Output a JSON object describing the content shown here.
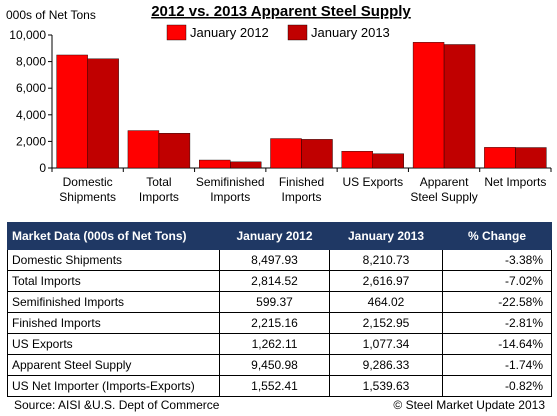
{
  "chart_data": {
    "type": "bar",
    "title": "2012 vs. 2013 Apparent Steel Supply",
    "ylabel": "000s of Net Tons",
    "ylim": [
      0,
      10000
    ],
    "yticks": [
      0,
      2000,
      4000,
      6000,
      8000,
      10000
    ],
    "ytick_labels": [
      "0",
      "2,000",
      "4,000",
      "6,000",
      "8,000",
      "10,000"
    ],
    "categories": [
      [
        "Domestic",
        "Shipments"
      ],
      [
        "Total",
        "Imports"
      ],
      [
        "Semifinished",
        "Imports"
      ],
      [
        "Finished",
        "Imports"
      ],
      [
        "US Exports"
      ],
      [
        "Apparent",
        "Steel Supply"
      ],
      [
        "Net Imports"
      ]
    ],
    "series": [
      {
        "name": "January 2012",
        "color": "#ff0000",
        "values": [
          8497.93,
          2814.52,
          599.37,
          2215.16,
          1262.11,
          9450.98,
          1552.41
        ]
      },
      {
        "name": "January 2013",
        "color": "#c00000",
        "values": [
          8210.73,
          2616.97,
          464.02,
          2152.95,
          1077.34,
          9286.33,
          1539.63
        ]
      }
    ],
    "legend": "top",
    "grid": false
  },
  "table": {
    "headers": [
      "Market Data (000s of Net Tons)",
      "January 2012",
      "January 2013",
      "% Change"
    ],
    "header_color": "#1f3864",
    "rows": [
      [
        "Domestic Shipments",
        "8,497.93",
        "8,210.73",
        "-3.38%"
      ],
      [
        "Total Imports",
        "2,814.52",
        "2,616.97",
        "-7.02%"
      ],
      [
        "Semifinished Imports",
        "599.37",
        "464.02",
        "-22.58%"
      ],
      [
        "Finished Imports",
        "2,215.16",
        "2,152.95",
        "-2.81%"
      ],
      [
        "US Exports",
        "1,262.11",
        "1,077.34",
        "-14.64%"
      ],
      [
        "Apparent Steel Supply",
        "9,450.98",
        "9,286.33",
        "-1.74%"
      ],
      [
        "US Net Importer (Imports-Exports)",
        "1,552.41",
        "1,539.63",
        "-0.82%"
      ]
    ]
  },
  "footer": {
    "source": "Source:  AISI &U.S. Dept of Commerce",
    "copyright": "©    Steel Market Update 2013"
  }
}
